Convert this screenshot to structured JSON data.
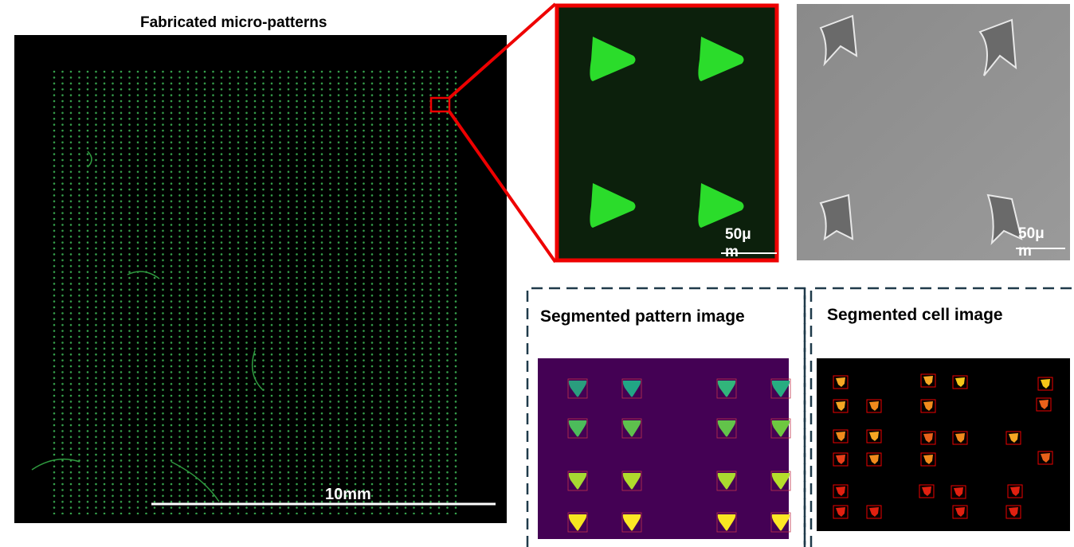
{
  "panels": {
    "fabricated": {
      "title": "Fabricated micro-patterns",
      "scale_bar": "10mm"
    },
    "fluorescence": {
      "scale_bar": "50μm"
    },
    "brightfield": {
      "scale_bar": "50μm"
    },
    "segmented_pattern": {
      "title": "Segmented pattern image"
    },
    "segmented_cell": {
      "title": "Segmented cell image"
    }
  }
}
